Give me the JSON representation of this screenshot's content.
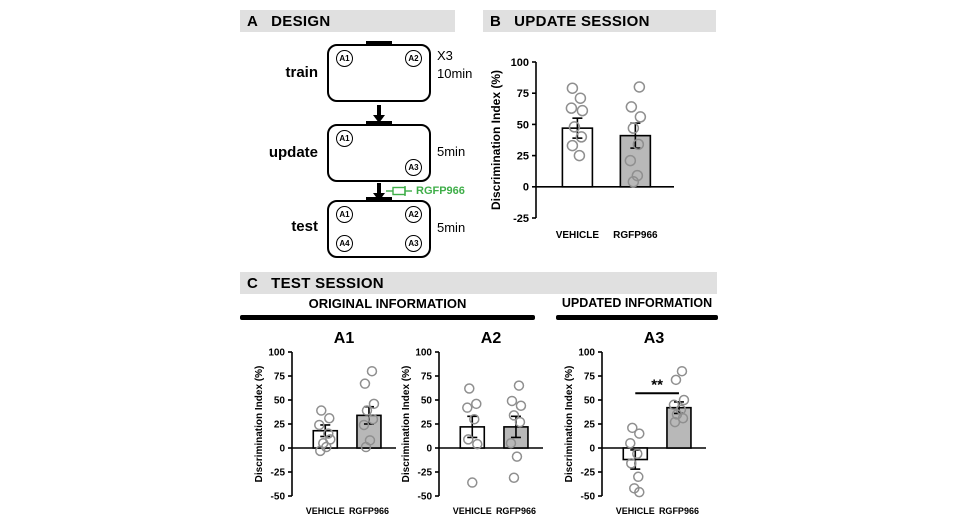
{
  "figure": {
    "background": "#ffffff",
    "header_bg": "#e0e0e0",
    "bar_gray": "#b8b8b8",
    "point_stroke": "#8f8f8f"
  },
  "panelA": {
    "letter": "A",
    "title": "DESIGN",
    "rows": {
      "train": {
        "label": "train",
        "notes": [
          "X3",
          "10min"
        ],
        "objects": [
          "A1",
          "A2"
        ]
      },
      "update": {
        "label": "update",
        "notes": [
          "5min"
        ],
        "objects": [
          "A1",
          "A3"
        ]
      },
      "test": {
        "label": "test",
        "notes": [
          "5min"
        ],
        "objects": [
          "A1",
          "A2",
          "A4",
          "A3"
        ]
      }
    },
    "drug": {
      "label": "RGFP966",
      "color": "#3fae49"
    }
  },
  "panelB": {
    "letter": "B",
    "title": "UPDATE SESSION"
  },
  "panelC": {
    "letter": "C",
    "title": "TEST SESSION",
    "sections": [
      {
        "label": "ORIGINAL INFORMATION"
      },
      {
        "label": "UPDATED INFORMATION"
      }
    ]
  },
  "chart_data": [
    {
      "id": "update_session",
      "type": "bar",
      "title": "",
      "ylabel": "Discrimination Index (%)",
      "ylim": [
        -25,
        100
      ],
      "yticks": [
        100,
        75,
        50,
        25,
        0,
        -25
      ],
      "categories": [
        "VEHICLE",
        "RGFP966"
      ],
      "bars": [
        {
          "label": "VEHICLE",
          "mean": 47,
          "sem": 8,
          "fill": "#ffffff",
          "points": [
            [
              -5,
              79
            ],
            [
              3,
              71
            ],
            [
              -6,
              63
            ],
            [
              5,
              61
            ],
            [
              -3,
              48
            ],
            [
              4,
              40
            ],
            [
              -5,
              33
            ],
            [
              2,
              25
            ]
          ]
        },
        {
          "label": "RGFP966",
          "mean": 41,
          "sem": 10,
          "fill": "#b8b8b8",
          "points": [
            [
              4,
              80
            ],
            [
              -4,
              64
            ],
            [
              5,
              56
            ],
            [
              -2,
              47
            ],
            [
              3,
              34
            ],
            [
              -5,
              21
            ],
            [
              2,
              9
            ],
            [
              -2,
              4
            ]
          ]
        }
      ],
      "significance": null
    },
    {
      "id": "test_a1",
      "type": "bar",
      "title": "A1",
      "ylabel": "Discrimination Index (%)",
      "ylim": [
        -50,
        100
      ],
      "yticks": [
        100,
        75,
        50,
        25,
        0,
        -25,
        -50
      ],
      "categories": [
        "VEHICLE",
        "RGFP966"
      ],
      "bars": [
        {
          "label": "VEHICLE",
          "mean": 18,
          "sem": 6,
          "fill": "#ffffff",
          "points": [
            [
              -4,
              39
            ],
            [
              4,
              31
            ],
            [
              -6,
              24
            ],
            [
              3,
              15
            ],
            [
              5,
              9
            ],
            [
              -2,
              5
            ],
            [
              1,
              1
            ],
            [
              -5,
              -3
            ]
          ]
        },
        {
          "label": "RGFP966",
          "mean": 34,
          "sem": 9,
          "fill": "#b8b8b8",
          "points": [
            [
              3,
              80
            ],
            [
              -4,
              67
            ],
            [
              5,
              46
            ],
            [
              -2,
              39
            ],
            [
              4,
              30
            ],
            [
              -5,
              24
            ],
            [
              1,
              8
            ],
            [
              -3,
              1
            ]
          ]
        }
      ],
      "significance": null
    },
    {
      "id": "test_a2",
      "type": "bar",
      "title": "A2",
      "ylabel": "Discrimination Index (%)",
      "ylim": [
        -50,
        100
      ],
      "yticks": [
        100,
        75,
        50,
        25,
        0,
        -25,
        -50
      ],
      "categories": [
        "VEHICLE",
        "RGFP966"
      ],
      "bars": [
        {
          "label": "VEHICLE",
          "mean": 22,
          "sem": 11,
          "fill": "#ffffff",
          "points": [
            [
              -3,
              62
            ],
            [
              4,
              46
            ],
            [
              -5,
              42
            ],
            [
              2,
              30
            ],
            [
              -4,
              9
            ],
            [
              5,
              4
            ],
            [
              0,
              -36
            ]
          ]
        },
        {
          "label": "RGFP966",
          "mean": 22,
          "sem": 11,
          "fill": "#b8b8b8",
          "points": [
            [
              3,
              65
            ],
            [
              -4,
              49
            ],
            [
              5,
              44
            ],
            [
              -2,
              34
            ],
            [
              4,
              27
            ],
            [
              -5,
              5
            ],
            [
              1,
              -9
            ],
            [
              -2,
              -31
            ]
          ]
        }
      ],
      "significance": null
    },
    {
      "id": "test_a3",
      "type": "bar",
      "title": "A3",
      "ylabel": "Discrimination Index (%)",
      "ylim": [
        -50,
        100
      ],
      "yticks": [
        100,
        75,
        50,
        25,
        0,
        -25,
        -50
      ],
      "categories": [
        "VEHICLE",
        "RGFP966"
      ],
      "bars": [
        {
          "label": "VEHICLE",
          "mean": -12,
          "sem": 10,
          "fill": "#ffffff",
          "points": [
            [
              -3,
              21
            ],
            [
              4,
              15
            ],
            [
              -5,
              5
            ],
            [
              2,
              -6
            ],
            [
              -4,
              -16
            ],
            [
              3,
              -30
            ],
            [
              -1,
              -42
            ],
            [
              4,
              -46
            ]
          ]
        },
        {
          "label": "RGFP966",
          "mean": 42,
          "sem": 6,
          "fill": "#b8b8b8",
          "points": [
            [
              3,
              80
            ],
            [
              -3,
              71
            ],
            [
              5,
              50
            ],
            [
              -5,
              45
            ],
            [
              2,
              40
            ],
            [
              -2,
              35
            ],
            [
              4,
              31
            ],
            [
              -4,
              27
            ]
          ]
        }
      ],
      "significance": {
        "label": "**",
        "y": 57
      }
    }
  ]
}
